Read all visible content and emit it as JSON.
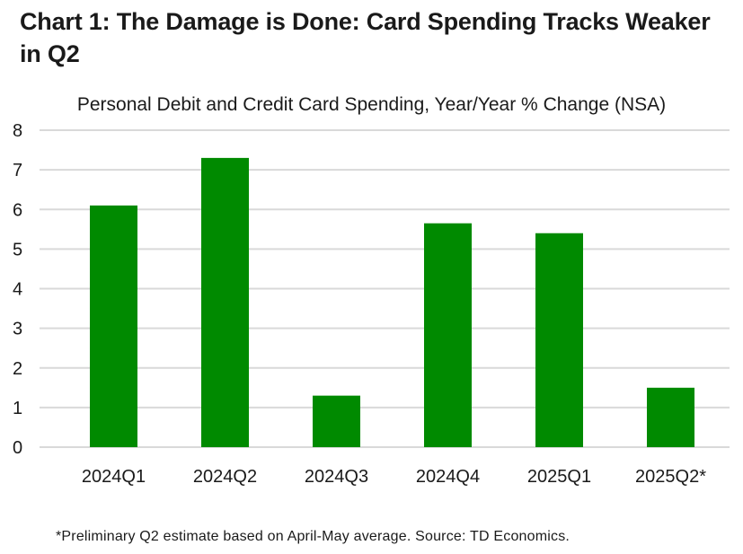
{
  "chart_data": {
    "type": "bar",
    "title": "Chart 1: The Damage is Done: Card Spending Tracks Weaker in Q2",
    "subtitle": "Personal Debit and Credit Card Spending, Year/Year % Change (NSA)",
    "categories": [
      "2024Q1",
      "2024Q2",
      "2024Q3",
      "2024Q4",
      "2025Q1",
      "2025Q2*"
    ],
    "values": [
      6.1,
      7.3,
      1.3,
      5.65,
      5.4,
      1.5
    ],
    "xlabel": "",
    "ylabel": "",
    "ylim": [
      0,
      8
    ],
    "yticks": [
      0,
      1,
      2,
      3,
      4,
      5,
      6,
      7,
      8
    ],
    "grid": true,
    "bar_color": "#008a00",
    "grid_color": "#d9d9d9",
    "footnote": "*Preliminary Q2 estimate based on April-May average. Source: TD Economics."
  }
}
